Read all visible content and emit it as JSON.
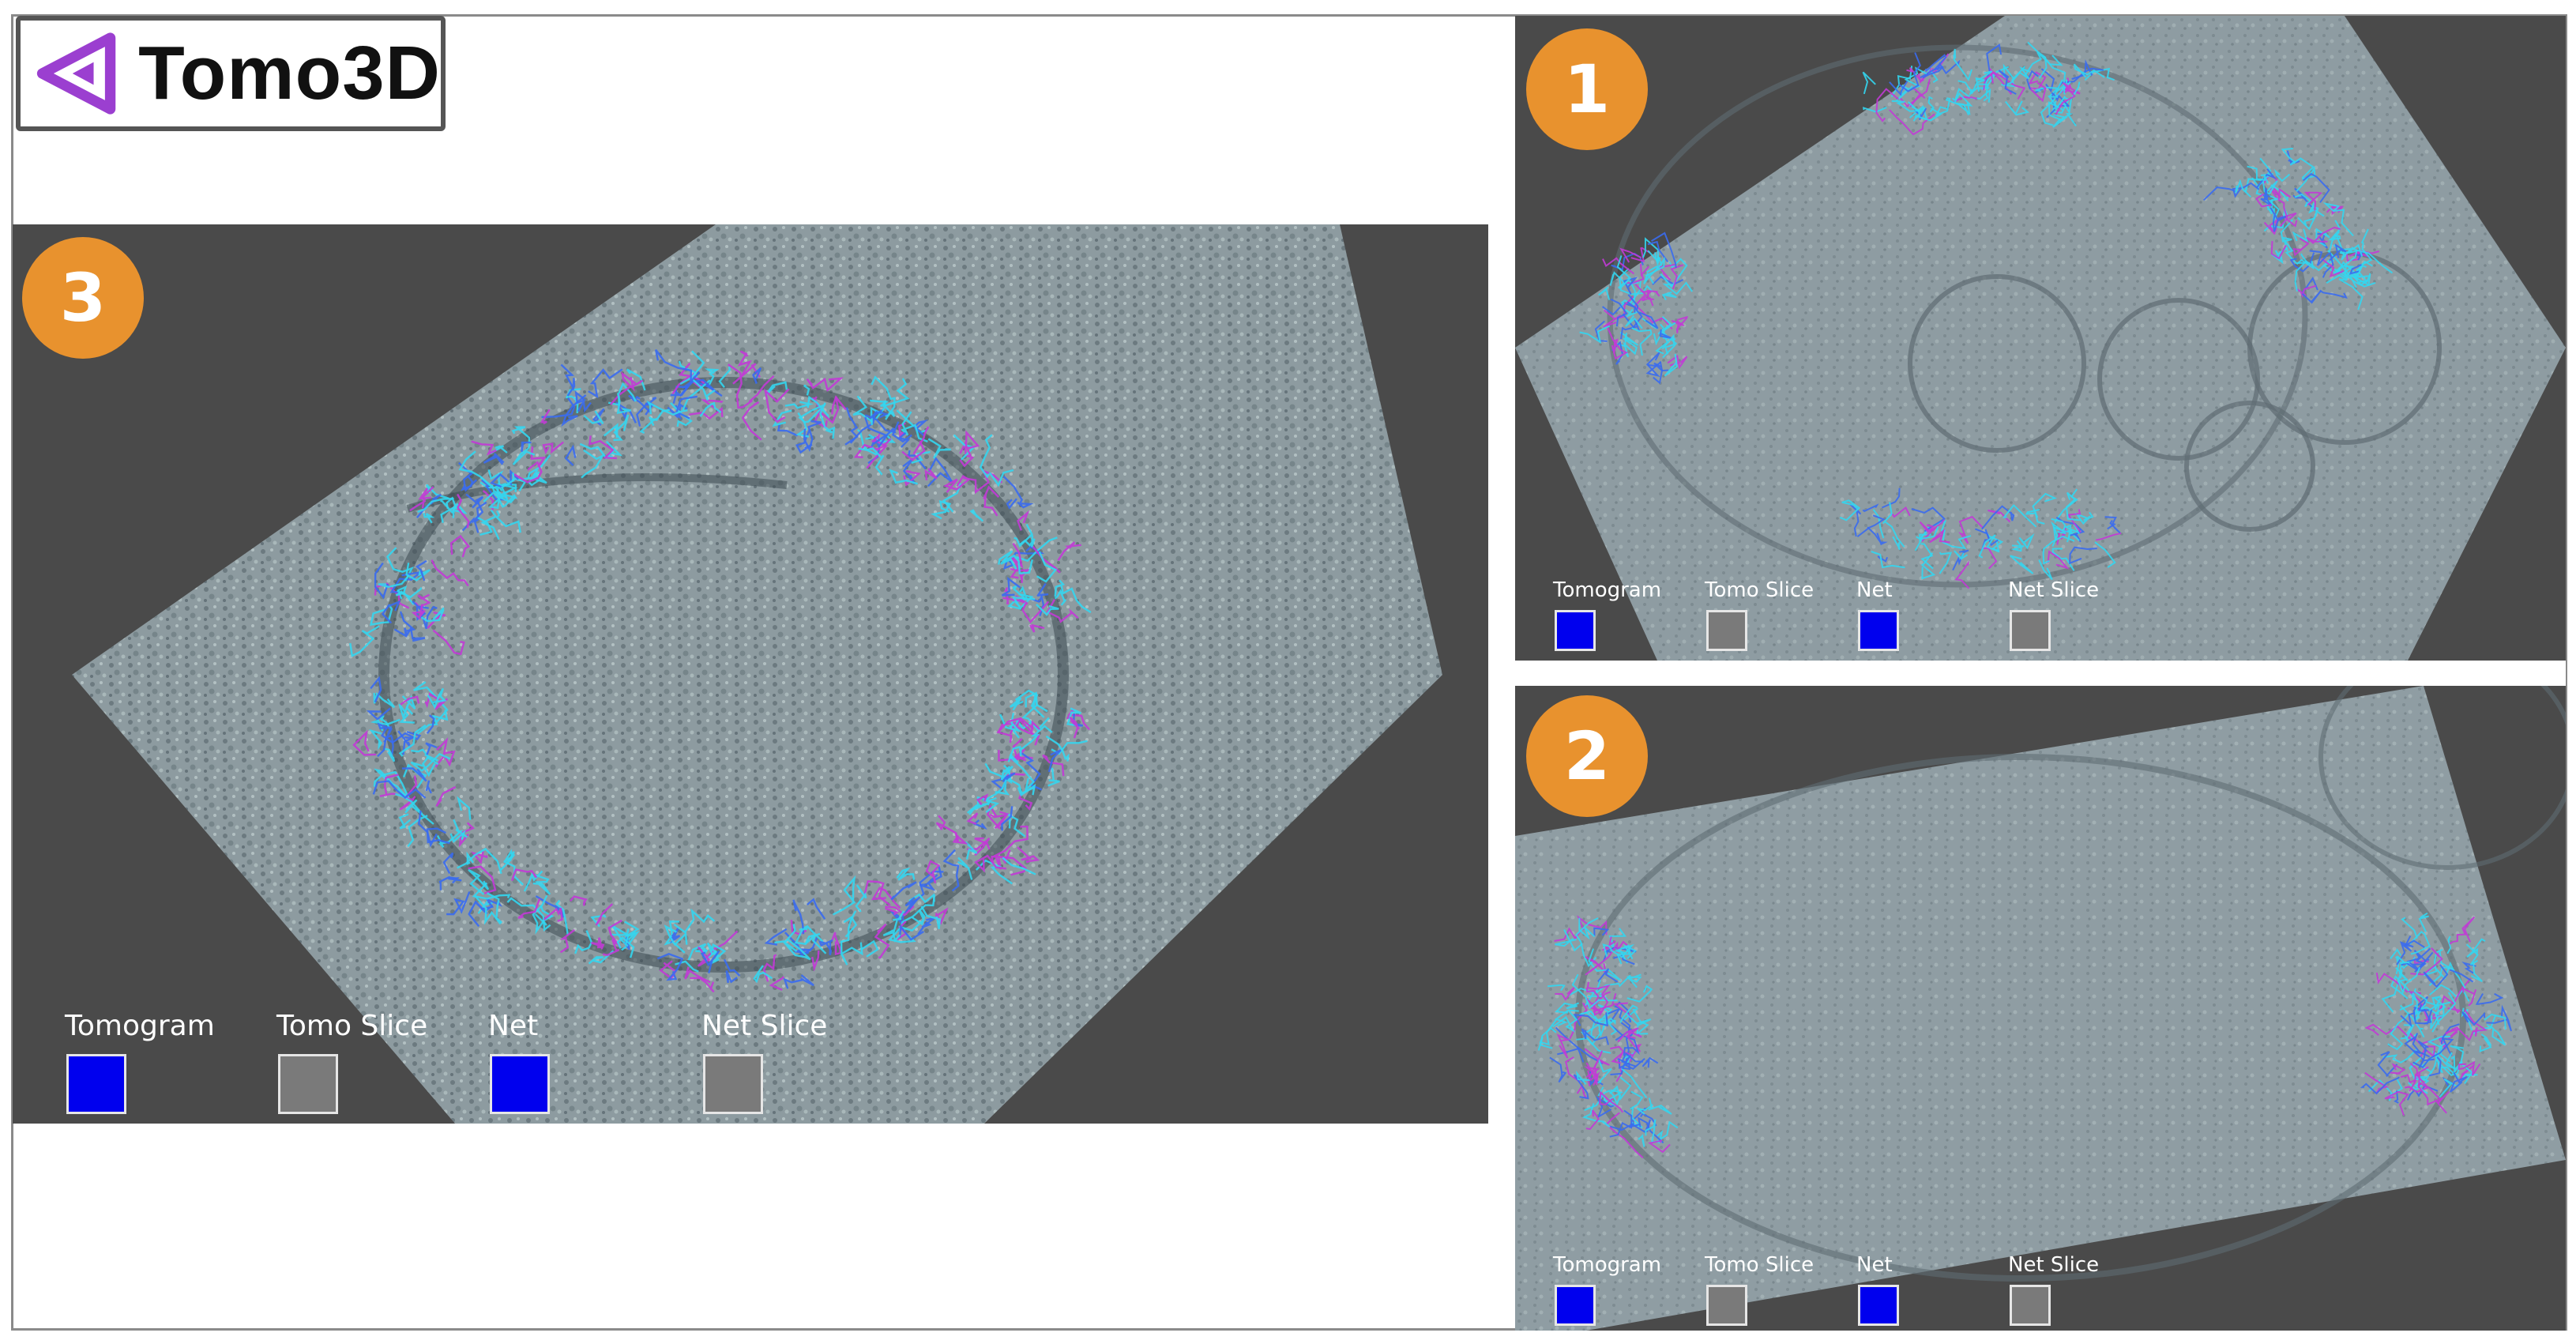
{
  "app": {
    "logo_text": "Tomo3D"
  },
  "panels": [
    {
      "id": "3",
      "badge": "3",
      "legend": [
        {
          "label": "Tomogram",
          "swatch": "blue"
        },
        {
          "label": "Tomo Slice",
          "swatch": "grey"
        },
        {
          "label": "Net",
          "swatch": "blue"
        },
        {
          "label": "Net Slice",
          "swatch": "grey"
        }
      ]
    },
    {
      "id": "1",
      "badge": "1",
      "legend": [
        {
          "label": "Tomogram",
          "swatch": "blue"
        },
        {
          "label": "Tomo Slice",
          "swatch": "grey"
        },
        {
          "label": "Net",
          "swatch": "blue"
        },
        {
          "label": "Net Slice",
          "swatch": "grey"
        }
      ]
    },
    {
      "id": "2",
      "badge": "2",
      "legend": [
        {
          "label": "Tomogram",
          "swatch": "blue"
        },
        {
          "label": "Tomo Slice",
          "swatch": "grey"
        },
        {
          "label": "Net",
          "swatch": "blue"
        },
        {
          "label": "Net Slice",
          "swatch": "grey"
        }
      ]
    }
  ],
  "colors": {
    "viewport_bg": "#4a4a4a",
    "badge": "#e8922e",
    "tomo_surface": "#8d9ba0",
    "net_cyan": "#33d6f0",
    "net_blue": "#3a6cf0",
    "net_magenta": "#c23ad6",
    "swatch_blue": "#0000ee",
    "swatch_grey": "#7a7a7a",
    "logo_purple": "#9b3fd0"
  }
}
